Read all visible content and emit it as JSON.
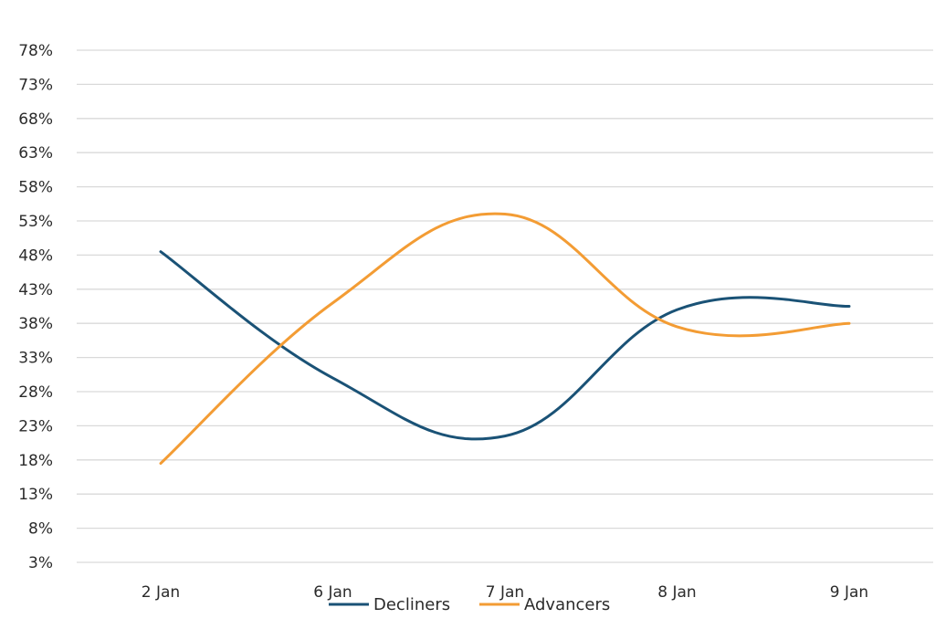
{
  "chart_data": {
    "type": "line",
    "title": "",
    "xlabel": "",
    "ylabel": "",
    "categories": [
      "2 Jan",
      "6 Jan",
      "7 Jan",
      "8 Jan",
      "9 Jan"
    ],
    "y_ticks": [
      "3%",
      "8%",
      "13%",
      "18%",
      "23%",
      "28%",
      "33%",
      "38%",
      "43%",
      "48%",
      "53%",
      "58%",
      "63%",
      "68%",
      "73%",
      "78%"
    ],
    "ylim": [
      3,
      78
    ],
    "grid": true,
    "legend_position": "bottom",
    "series": [
      {
        "name": "Decliners",
        "color": "#1a5276",
        "values": [
          48.5,
          30.0,
          21.5,
          40.0,
          40.5
        ]
      },
      {
        "name": "Advancers",
        "color": "#f39c34",
        "values": [
          17.5,
          41.0,
          54.0,
          37.5,
          38.0
        ]
      }
    ]
  }
}
